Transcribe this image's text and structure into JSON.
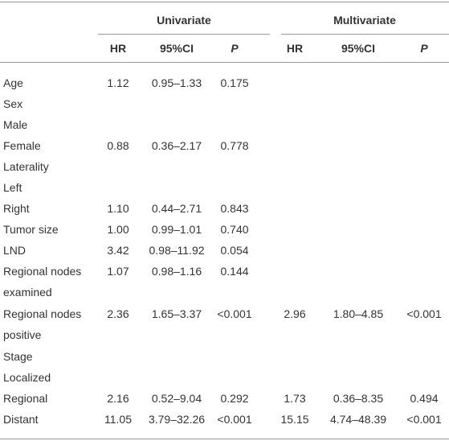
{
  "table": {
    "groups": [
      "Univariate",
      "Multivariate"
    ],
    "columns": [
      "HR",
      "95%CI",
      "P",
      "HR",
      "95%CI",
      "P"
    ],
    "rows": [
      {
        "label": "Age",
        "cells": [
          "1.12",
          "0.95–1.33",
          "0.175",
          null,
          null,
          null
        ]
      },
      {
        "label": "Sex",
        "cells": [
          null,
          null,
          null,
          null,
          null,
          null
        ]
      },
      {
        "label": "Male",
        "cells": [
          null,
          null,
          null,
          null,
          null,
          null
        ]
      },
      {
        "label": "Female",
        "cells": [
          "0.88",
          "0.36–2.17",
          "0.778",
          null,
          null,
          null
        ]
      },
      {
        "label": "Laterality",
        "cells": [
          null,
          null,
          null,
          null,
          null,
          null
        ]
      },
      {
        "label": "Left",
        "cells": [
          null,
          null,
          null,
          null,
          null,
          null
        ]
      },
      {
        "label": "Right",
        "cells": [
          "1.10",
          "0.44–2.71",
          "0.843",
          null,
          null,
          null
        ]
      },
      {
        "label": "Tumor size",
        "cells": [
          "1.00",
          "0.99–1.01",
          "0.740",
          null,
          null,
          null
        ]
      },
      {
        "label": "LND",
        "cells": [
          "3.42",
          "0.98–11.92",
          "0.054",
          null,
          null,
          null
        ]
      },
      {
        "label": "Regional nodes examined",
        "cells": [
          "1.07",
          "0.98–1.16",
          "0.144",
          null,
          null,
          null
        ]
      },
      {
        "label": "Regional nodes positive",
        "cells": [
          "2.36",
          "1.65–3.37",
          "<0.001",
          "2.96",
          "1.80–4.85",
          "<0.001"
        ]
      },
      {
        "label": "Stage",
        "cells": [
          null,
          null,
          null,
          null,
          null,
          null
        ]
      },
      {
        "label": "Localized",
        "cells": [
          null,
          null,
          null,
          null,
          null,
          null
        ]
      },
      {
        "label": "Regional",
        "cells": [
          "2.16",
          "0.52–9.04",
          "0.292",
          "1.73",
          "0.36–8.35",
          "0.494"
        ]
      },
      {
        "label": "Distant",
        "cells": [
          "11.05",
          "3.79–32.26",
          "<0.001",
          "15.15",
          "4.74–48.39",
          "<0.001"
        ]
      }
    ]
  }
}
